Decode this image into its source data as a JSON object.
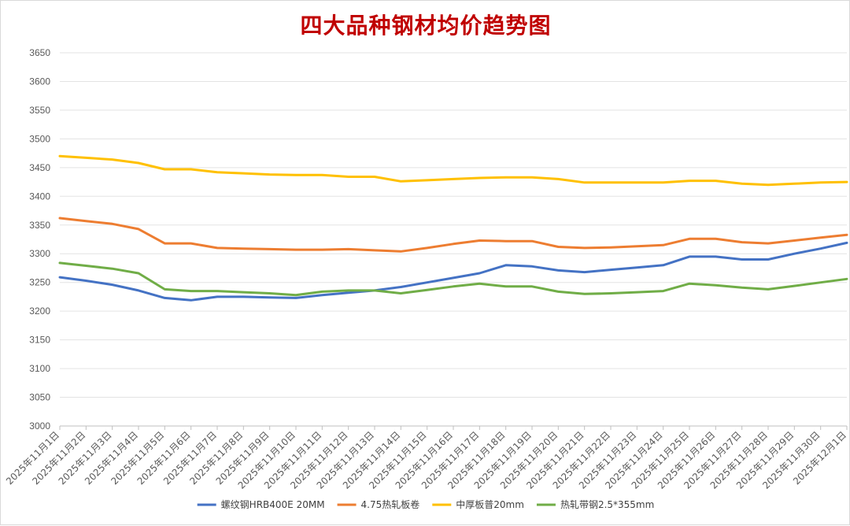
{
  "chart_data": {
    "type": "line",
    "title": "四大品种钢材均价趋势图",
    "ylim": [
      3000,
      3650
    ],
    "yticks": [
      3000,
      3050,
      3100,
      3150,
      3200,
      3250,
      3300,
      3350,
      3400,
      3450,
      3500,
      3550,
      3600,
      3650
    ],
    "grid": true,
    "legend_position": "bottom",
    "categories": [
      "2025年11月1日",
      "2025年11月2日",
      "2025年11月3日",
      "2025年11月4日",
      "2025年11月5日",
      "2025年11月6日",
      "2025年11月7日",
      "2025年11月8日",
      "2025年11月9日",
      "2025年11月10日",
      "2025年11月11日",
      "2025年11月12日",
      "2025年11月13日",
      "2025年11月14日",
      "2025年11月15日",
      "2025年11月16日",
      "2025年11月17日",
      "2025年11月18日",
      "2025年11月19日",
      "2025年11月20日",
      "2025年11月21日",
      "2025年11月22日",
      "2025年11月23日",
      "2025年11月24日",
      "2025年11月25日",
      "2025年11月26日",
      "2025年11月27日",
      "2025年11月28日",
      "2025年11月29日",
      "2025年11月30日",
      "2025年12月1日"
    ],
    "series": [
      {
        "name": "螺纹钢HRB400E 20MM",
        "color": "#4472c4",
        "values": [
          3259,
          3253,
          3246,
          3236,
          3223,
          3219,
          3225,
          3225,
          3224,
          3223,
          3228,
          3232,
          3236,
          3242,
          3250,
          3258,
          3266,
          3280,
          3278,
          3271,
          3268,
          3272,
          3276,
          3280,
          3295,
          3295,
          3290,
          3290,
          3300,
          3309,
          3319
        ]
      },
      {
        "name": "4.75热轧板卷",
        "color": "#ed7d31",
        "values": [
          3362,
          3357,
          3352,
          3343,
          3318,
          3318,
          3310,
          3309,
          3308,
          3307,
          3307,
          3308,
          3306,
          3304,
          3310,
          3317,
          3323,
          3322,
          3322,
          3312,
          3310,
          3311,
          3313,
          3315,
          3326,
          3326,
          3320,
          3318,
          3323,
          3328,
          3333
        ]
      },
      {
        "name": "中厚板普20mm",
        "color": "#ffc000",
        "values": [
          3470,
          3467,
          3464,
          3458,
          3447,
          3447,
          3442,
          3440,
          3438,
          3437,
          3437,
          3434,
          3434,
          3426,
          3428,
          3430,
          3432,
          3433,
          3433,
          3430,
          3424,
          3424,
          3424,
          3424,
          3427,
          3427,
          3422,
          3420,
          3422,
          3424,
          3425
        ]
      },
      {
        "name": "热轧带钢2.5*355mm",
        "color": "#70ad47",
        "values": [
          3284,
          3279,
          3274,
          3266,
          3238,
          3235,
          3235,
          3233,
          3231,
          3228,
          3234,
          3236,
          3236,
          3231,
          3237,
          3243,
          3248,
          3243,
          3243,
          3234,
          3230,
          3231,
          3233,
          3235,
          3248,
          3245,
          3241,
          3238,
          3244,
          3250,
          3256
        ]
      }
    ]
  }
}
